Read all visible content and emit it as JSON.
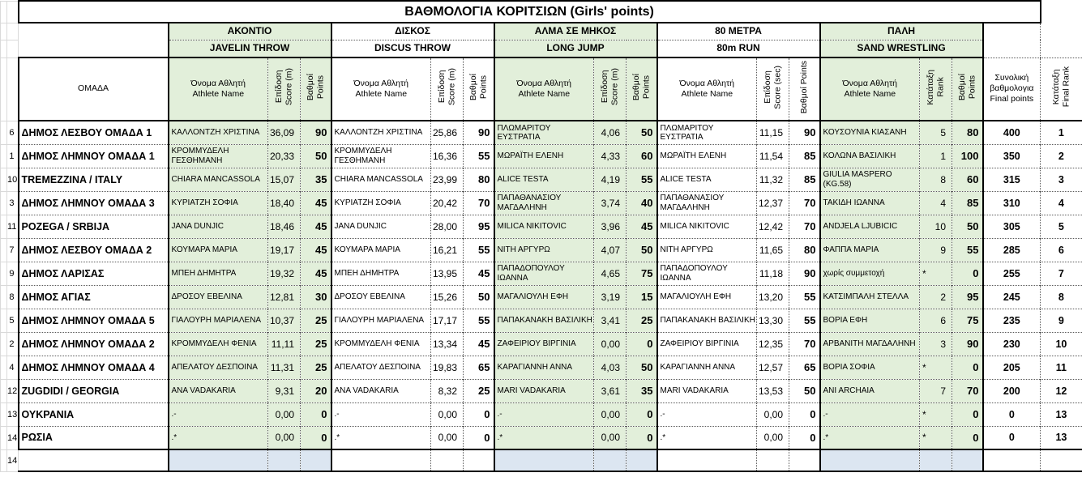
{
  "title": "ΒΑΘΜΟΛΟΓΙΑ ΚΟΡΙΤΣΙΩΝ (Girls' points)",
  "columns": {
    "team_header": "ΟΜΑΔΑ",
    "final_points_header": "Συνολική\nβαθμολογια\nFinal points",
    "final_rank_header": "Κατάταξη\nFinal Rank"
  },
  "sections": [
    {
      "key": "javelin",
      "title_el": "ΑΚΟΝΤΙΟ",
      "title_en": "JAVELIN THROW",
      "athlete_header": "Όνομα Αθλητή\nAthlete Name",
      "score_header": "Επίδοση\nScore (m)",
      "points_header": "Βαθμοί\nPoints",
      "green": true
    },
    {
      "key": "discus",
      "title_el": "ΔΙΣΚΟΣ",
      "title_en": "DISCUS THROW",
      "athlete_header": "Όνομα Αθλητή\nAthlete Name",
      "score_header": "Επίδοση\nScore (m)",
      "points_header": "Βαθμοί\nPoints",
      "green": false
    },
    {
      "key": "longjump",
      "title_el": "ΑΛΜΑ ΣΕ ΜΗΚΟΣ",
      "title_en": "LONG JUMP",
      "athlete_header": "Όνομα Αθλητή\nAthlete Name",
      "score_header": "Επίδοση\nScore (m)",
      "points_header": "Βαθμοί\nPoints",
      "green": true
    },
    {
      "key": "run",
      "title_el": "80 ΜΕΤΡΑ",
      "title_en": "80m RUN",
      "athlete_header": "Όνομα Αθλητή\nAthlete Name",
      "score_header": "Επίδοση\nScore (sec)",
      "points_header": "Βαθμοί Points",
      "green": false
    },
    {
      "key": "wrestling",
      "title_el": "ΠΑΛΗ",
      "title_en": "SAND  WRESTLING",
      "athlete_header": "Όνομα Αθλητή\nAthlete Name",
      "score_header": "Κατάταξη\nRank",
      "points_header": "Βαθμοί\nPoints",
      "green": true
    }
  ],
  "rows": [
    {
      "num": "6",
      "team": "ΔΗΜΟΣ ΛΕΣΒΟΥ ΟΜΑΔΑ 1",
      "javelin": [
        "ΚΑΛΛΟΝΤΖΗ ΧΡΙΣΤΙΝΑ",
        "36,09",
        "90"
      ],
      "discus": [
        "ΚΑΛΛΟΝΤΖΗ ΧΡΙΣΤΙΝΑ",
        "25,86",
        "90"
      ],
      "longjump": [
        "ΠΛΩΜΑΡΙΤΟΥ ΕΥΣΤΡΑΤΙΑ",
        "4,06",
        "50"
      ],
      "run": [
        "ΠΛΩΜΑΡΙΤΟΥ ΕΥΣΤΡΑΤΙΑ",
        "11,15",
        "90"
      ],
      "wrestling": [
        "ΚΟΥΣΟΥΝΙΑ ΚΙΑΣΑΝΗ",
        "5",
        "80"
      ],
      "total": "400",
      "final_rank": "1"
    },
    {
      "num": "1",
      "team": "ΔΗΜΟΣ ΛΗΜΝΟΥ ΟΜΑΔΑ 1",
      "javelin": [
        "ΚΡΟΜΜΥΔΕΛΗ ΓΕΣΘΗΜΑΝΗ",
        "20,33",
        "50"
      ],
      "discus": [
        "ΚΡΟΜΜΥΔΕΛΗ ΓΕΣΘΗΜΑΝΗ",
        "16,36",
        "55"
      ],
      "longjump": [
        "ΜΩΡΑΪΤΗ ΕΛΕΝΗ",
        "4,33",
        "60"
      ],
      "run": [
        "ΜΩΡΑΪΤΗ ΕΛΕΝΗ",
        "11,54",
        "85"
      ],
      "wrestling": [
        "ΚΟΛΩΝΑ ΒΑΣΙΛΙΚΗ",
        "1",
        "100"
      ],
      "total": "350",
      "final_rank": "2"
    },
    {
      "num": "10",
      "team": "TREMEZZINA / ITALY",
      "javelin": [
        "CHIARA MANCASSOLA",
        "15,07",
        "35"
      ],
      "discus": [
        "CHIARA MANCASSOLA",
        "23,99",
        "80"
      ],
      "longjump": [
        "ALICE TESTA",
        "4,19",
        "55"
      ],
      "run": [
        "ALICE TESTA",
        "11,32",
        "85"
      ],
      "wrestling": [
        "GIULIA MASPERO (KG.58)",
        "8",
        "60"
      ],
      "total": "315",
      "final_rank": "3"
    },
    {
      "num": "3",
      "team": "ΔΗΜΟΣ ΛΗΜΝΟΥ ΟΜΑΔΑ 3",
      "javelin": [
        "ΚΥΡΙΑΤΖΗ ΣΟΦΙΑ",
        "18,40",
        "45"
      ],
      "discus": [
        "ΚΥΡΙΑΤΖΗ ΣΟΦΙΑ",
        "20,42",
        "70"
      ],
      "longjump": [
        "ΠΑΠΑΘΑΝΑΣΙΟΥ ΜΑΓΔΑΛΗΝΗ",
        "3,74",
        "40"
      ],
      "run": [
        "ΠΑΠΑΘΑΝΑΣΙΟΥ ΜΑΓΔΑΛΗΝΗ",
        "12,37",
        "70"
      ],
      "wrestling": [
        "ΤΑΚΙΔΗ ΙΩΑΝΝΑ",
        "4",
        "85"
      ],
      "total": "310",
      "final_rank": "4"
    },
    {
      "num": "11",
      "team": "POZEGA / SRBIJA",
      "javelin": [
        "JANA DUNJIC",
        "18,46",
        "45"
      ],
      "discus": [
        "JANA DUNJIC",
        "28,00",
        "95"
      ],
      "longjump": [
        "MILICA NIKITOVIC",
        "3,96",
        "45"
      ],
      "run": [
        "MILICA NIKITOVIC",
        "12,42",
        "70"
      ],
      "wrestling": [
        "ANDJELA LJUBICIC",
        "10",
        "50"
      ],
      "total": "305",
      "final_rank": "5"
    },
    {
      "num": "7",
      "team": "ΔΗΜΟΣ ΛΕΣΒΟΥ ΟΜΑΔΑ 2",
      "javelin": [
        "ΚΟΥΜΑΡΑ ΜΑΡΙΑ",
        "19,17",
        "45"
      ],
      "discus": [
        "ΚΟΥΜΑΡΑ ΜΑΡΙΑ",
        "16,21",
        "55"
      ],
      "longjump": [
        "ΝΙΤΗ ΑΡΓΥΡΩ",
        "4,07",
        "50"
      ],
      "run": [
        "ΝΙΤΗ ΑΡΓΥΡΩ",
        "11,65",
        "80"
      ],
      "wrestling": [
        "ΦΑΠΠΑ ΜΑΡΙΑ",
        "9",
        "55"
      ],
      "total": "285",
      "final_rank": "6"
    },
    {
      "num": "9",
      "team": "ΔΗΜΟΣ ΛΑΡΙΣΑΣ",
      "javelin": [
        "ΜΠΕΗ ΔΗΜΗΤΡΑ",
        "19,32",
        "45"
      ],
      "discus": [
        "ΜΠΕΗ ΔΗΜΗΤΡΑ",
        "13,95",
        "45"
      ],
      "longjump": [
        "ΠΑΠΑΔΟΠΟΥΛΟΥ ΙΩΑΝΝΑ",
        "4,65",
        "75"
      ],
      "run": [
        "ΠΑΠΑΔΟΠΟΥΛΟΥ ΙΩΑΝΝΑ",
        "11,18",
        "90"
      ],
      "wrestling": [
        "χωρίς συμμετοχή",
        "*",
        "0"
      ],
      "total": "255",
      "final_rank": "7"
    },
    {
      "num": "8",
      "team": "ΔΗΜΟΣ ΑΓΙΑΣ",
      "javelin": [
        "ΔΡΟΣΟΥ ΕΒΕΛΙΝΑ",
        "12,81",
        "30"
      ],
      "discus": [
        "ΔΡΟΣΟΥ ΕΒΕΛΙΝΑ",
        "15,26",
        "50"
      ],
      "longjump": [
        "ΜΑΓΑΛΙΟΥΛΗ ΕΦΗ",
        "3,19",
        "15"
      ],
      "run": [
        "ΜΑΓΑΛΙΟΥΛΗ ΕΦΗ",
        "13,20",
        "55"
      ],
      "wrestling": [
        "ΚΑΤΣΙΜΠΑΛΗ ΣΤΕΛΛΑ",
        "2",
        "95"
      ],
      "total": "245",
      "final_rank": "8"
    },
    {
      "num": "5",
      "team": "ΔΗΜΟΣ ΛΗΜΝΟΥ ΟΜΑΔΑ 5",
      "javelin": [
        "ΓΙΑΛΟΥΡΗ ΜΑΡΙΑΛΕΝΑ",
        "10,37",
        "25"
      ],
      "discus": [
        "ΓΙΑΛΟΥΡΗ ΜΑΡΙΑΛΕΝΑ",
        "17,17",
        "55"
      ],
      "longjump": [
        "ΠΑΠΑΚΑΝΑΚΗ ΒΑΣΙΛΙΚΗ",
        "3,41",
        "25"
      ],
      "run": [
        "ΠΑΠΑΚΑΝΑΚΗ ΒΑΣΙΛΙΚΗ",
        "13,30",
        "55"
      ],
      "wrestling": [
        "ΒΟΡΙΑ ΕΦΗ",
        "6",
        "75"
      ],
      "total": "235",
      "final_rank": "9"
    },
    {
      "num": "2",
      "team": "ΔΗΜΟΣ ΛΗΜΝΟΥ ΟΜΑΔΑ 2",
      "javelin": [
        "ΚΡΟΜΜΥΔΕΛΗ ΦΕΝΙΑ",
        "11,11",
        "25"
      ],
      "discus": [
        "ΚΡΟΜΜΥΔΕΛΗ ΦΕΝΙΑ",
        "13,34",
        "45"
      ],
      "longjump": [
        "ΖΑΦΕΙΡΙΟΥ ΒΙΡΓΙΝΙΑ",
        "0,00",
        "0"
      ],
      "run": [
        "ΖΑΦΕΙΡΙΟΥ ΒΙΡΓΙΝΙΑ",
        "12,35",
        "70"
      ],
      "wrestling": [
        "ΑΡΒΑΝΙΤΗ ΜΑΓΔΑΛΗΝΗ",
        "3",
        "90"
      ],
      "total": "230",
      "final_rank": "10"
    },
    {
      "num": "4",
      "team": "ΔΗΜΟΣ ΛΗΜΝΟΥ ΟΜΑΔΑ 4",
      "javelin": [
        "ΑΠΕΛΑΤΟΥ ΔΕΣΠΟΙΝΑ",
        "11,31",
        "25"
      ],
      "discus": [
        "ΑΠΕΛΑΤΟΥ ΔΕΣΠΟΙΝΑ",
        "19,83",
        "65"
      ],
      "longjump": [
        "ΚΑΡΑΓΙΑΝΝΗ ΑΝΝΑ",
        "4,03",
        "50"
      ],
      "run": [
        "ΚΑΡΑΓΙΑΝΝΗ ΑΝΝΑ",
        "12,57",
        "65"
      ],
      "wrestling": [
        "ΒΟΡΙΑ ΣΟΦΙΑ",
        "*",
        "0"
      ],
      "total": "205",
      "final_rank": "11"
    },
    {
      "num": "12",
      "team": "ZUGDIDI / GEORGIA",
      "javelin": [
        "ANA VADAKARIA",
        "9,31",
        "20"
      ],
      "discus": [
        "ANA VADAKARIA",
        "8,32",
        "25"
      ],
      "longjump": [
        "MARI VADAKARIA",
        "3,61",
        "35"
      ],
      "run": [
        "MARI VADAKARIA",
        "13,53",
        "50"
      ],
      "wrestling": [
        "ANI ARCHAIA",
        "7",
        "70"
      ],
      "total": "200",
      "final_rank": "12"
    },
    {
      "num": "13",
      "team": "ΟΥΚΡΑΝΙΑ",
      "javelin": [
        ".-",
        "0,00",
        "0"
      ],
      "discus": [
        ".-",
        "0,00",
        "0"
      ],
      "longjump": [
        ".-",
        "0,00",
        "0"
      ],
      "run": [
        ".-",
        "0,00",
        "0"
      ],
      "wrestling": [
        ".-",
        "*",
        "0"
      ],
      "total": "0",
      "final_rank": "13"
    },
    {
      "num": "14",
      "team": "ΡΩΣΙΑ",
      "javelin": [
        ".*",
        "0,00",
        "0"
      ],
      "discus": [
        ".*",
        "0,00",
        "0"
      ],
      "longjump": [
        ".*",
        "0,00",
        "0"
      ],
      "run": [
        ".*",
        "0,00",
        "0"
      ],
      "wrestling": [
        ".*",
        "*",
        "0"
      ],
      "total": "0",
      "final_rank": "13"
    }
  ],
  "bottom_row_label": "14",
  "colors": {
    "section_green": "#e2efda",
    "bottom_blue": "#dce6f1",
    "border_black": "#000000",
    "grid_gray": "#d9d9d9"
  }
}
